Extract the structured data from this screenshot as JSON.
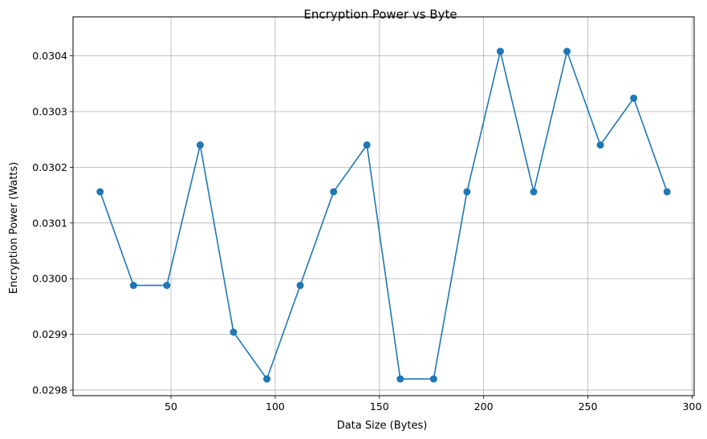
{
  "chart_data": {
    "type": "line",
    "title": "Encryption Power vs Byte",
    "xlabel": "Data Size (Bytes)",
    "ylabel": "Encryption Power (Watts)",
    "xlim": [
      3,
      301
    ],
    "ylim": [
      0.02979,
      0.03047
    ],
    "xticks": [
      50,
      100,
      150,
      200,
      250,
      300
    ],
    "yticks": [
      0.0298,
      0.0299,
      0.03,
      0.0301,
      0.0302,
      0.0303,
      0.0304
    ],
    "grid": true,
    "marker": "circle",
    "color": "#1f77b4",
    "series": [
      {
        "x": [
          16,
          32,
          48,
          64,
          80,
          96,
          112,
          128,
          144,
          160,
          176,
          192,
          208,
          224,
          240,
          256,
          272,
          288
        ],
        "values": [
          0.030156,
          0.029988,
          0.029988,
          0.03024,
          0.029904,
          0.02982,
          0.029988,
          0.030156,
          0.03024,
          0.02982,
          0.02982,
          0.030156,
          0.030408,
          0.030156,
          0.030408,
          0.03024,
          0.030324,
          0.030156
        ]
      }
    ]
  }
}
